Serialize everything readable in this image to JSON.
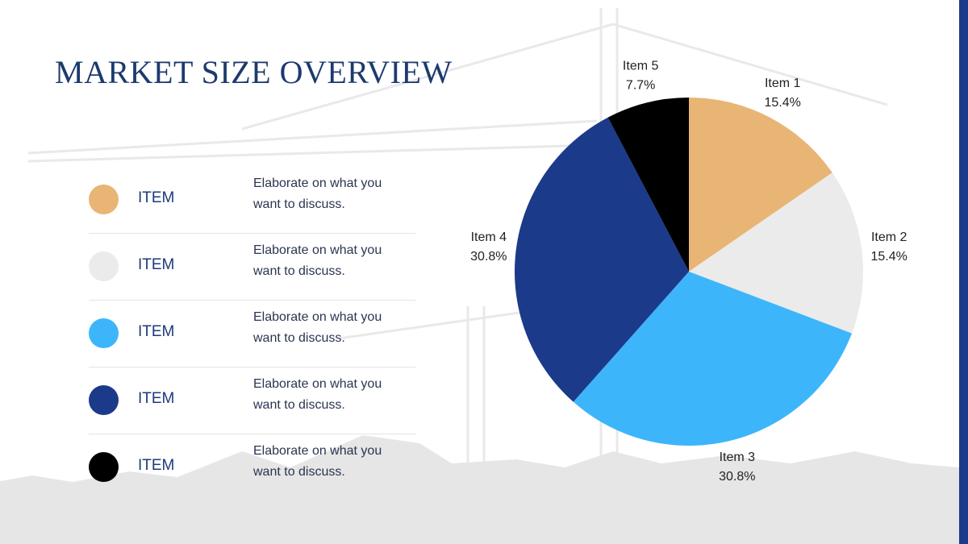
{
  "chart_data": {
    "type": "pie",
    "title": "MARKET SIZE OVERVIEW",
    "categories": [
      "Item 1",
      "Item 2",
      "Item 3",
      "Item 4",
      "Item 5"
    ],
    "values": [
      15.4,
      15.4,
      30.8,
      30.8,
      7.7
    ],
    "value_labels": [
      "15.4%",
      "15.4%",
      "30.8%",
      "30.8%",
      "7.7%"
    ],
    "colors": [
      "#e8b574",
      "#ebebeb",
      "#3db5fb",
      "#1b3a8a",
      "#000000"
    ]
  },
  "legend_list": [
    {
      "label": "ITEM",
      "text": "Elaborate on what you want to discuss."
    },
    {
      "label": "ITEM",
      "text": "Elaborate on what you want to discuss."
    },
    {
      "label": "ITEM",
      "text": "Elaborate on what you want to discuss."
    },
    {
      "label": "ITEM",
      "text": "Elaborate on what you want to discuss."
    },
    {
      "label": "ITEM",
      "text": "Elaborate on what you want to discuss."
    }
  ]
}
